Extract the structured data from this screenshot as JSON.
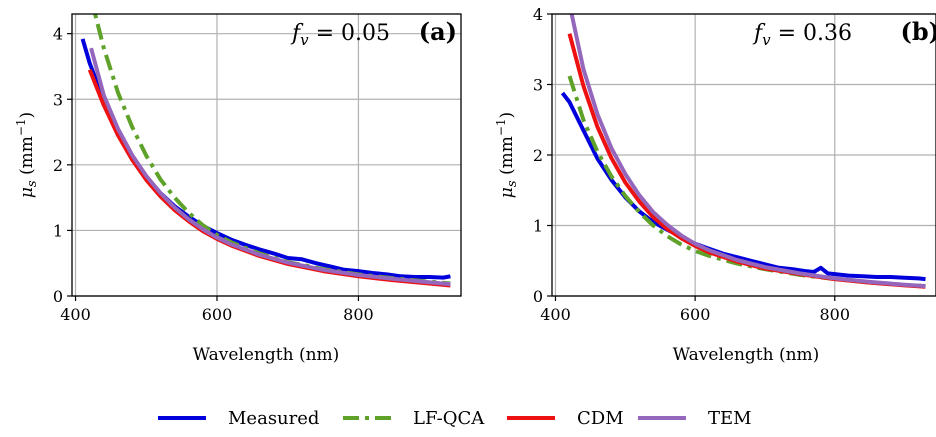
{
  "legend": {
    "entries": [
      {
        "name": "Measured",
        "color": "#0000dd",
        "dash": "solid"
      },
      {
        "name": "LF-QCA",
        "color": "#5fa22a",
        "dash": "dashdot"
      },
      {
        "name": "CDM",
        "color": "#ee1111",
        "dash": "solid"
      },
      {
        "name": "TEM",
        "color": "#9467bd",
        "dash": "solid"
      }
    ]
  },
  "chart_data": [
    {
      "type": "line",
      "panel_label": "(a)",
      "annotation": "f_v = 0.05",
      "annotation_base": "f",
      "annotation_sub": "v",
      "annotation_rest": " = 0.05",
      "xlabel": "Wavelength (nm)",
      "ylabel_base": "μ",
      "ylabel_sub": "s",
      "ylabel_rest": " (mm",
      "ylabel_sup": "−1",
      "ylabel_close": ")",
      "xlim": [
        395,
        945
      ],
      "ylim": [
        0,
        4.3
      ],
      "xticks": [
        400,
        600,
        800
      ],
      "yticks": [
        0,
        1,
        2,
        3,
        4
      ],
      "grid": true,
      "series": [
        {
          "name": "Measured",
          "x": [
            410,
            420,
            440,
            460,
            480,
            500,
            520,
            540,
            560,
            580,
            600,
            620,
            640,
            660,
            680,
            700,
            720,
            740,
            760,
            780,
            800,
            820,
            840,
            860,
            880,
            900,
            920,
            930
          ],
          "y": [
            3.92,
            3.55,
            2.98,
            2.5,
            2.12,
            1.82,
            1.57,
            1.37,
            1.21,
            1.07,
            0.96,
            0.86,
            0.78,
            0.71,
            0.65,
            0.58,
            0.56,
            0.5,
            0.45,
            0.4,
            0.38,
            0.35,
            0.33,
            0.3,
            0.29,
            0.29,
            0.28,
            0.3
          ]
        },
        {
          "name": "LF-QCA",
          "x": [
            420,
            440,
            460,
            480,
            500,
            520,
            540,
            560,
            580,
            600,
            620,
            660,
            700,
            750,
            800,
            850,
            900,
            930
          ],
          "y": [
            4.62,
            3.78,
            3.1,
            2.58,
            2.14,
            1.78,
            1.5,
            1.27,
            1.08,
            0.93,
            0.82,
            0.65,
            0.52,
            0.41,
            0.33,
            0.27,
            0.22,
            0.19
          ]
        },
        {
          "name": "CDM",
          "x": [
            420,
            440,
            460,
            480,
            500,
            520,
            540,
            560,
            580,
            600,
            620,
            660,
            700,
            750,
            800,
            850,
            900,
            930
          ],
          "y": [
            3.45,
            2.91,
            2.45,
            2.08,
            1.77,
            1.52,
            1.31,
            1.14,
            0.99,
            0.87,
            0.77,
            0.61,
            0.49,
            0.38,
            0.3,
            0.24,
            0.19,
            0.16
          ]
        },
        {
          "name": "TEM",
          "x": [
            422,
            440,
            460,
            480,
            500,
            520,
            540,
            560,
            580,
            600,
            620,
            660,
            700,
            750,
            800,
            850,
            900,
            930
          ],
          "y": [
            3.78,
            3.06,
            2.55,
            2.15,
            1.83,
            1.57,
            1.35,
            1.17,
            1.02,
            0.89,
            0.79,
            0.63,
            0.51,
            0.4,
            0.32,
            0.26,
            0.21,
            0.18
          ]
        }
      ]
    },
    {
      "type": "line",
      "panel_label": "(b)",
      "annotation": "f_v = 0.36",
      "annotation_base": "f",
      "annotation_sub": "v",
      "annotation_rest": " = 0.36",
      "xlabel": "Wavelength (nm)",
      "ylabel_base": "μ",
      "ylabel_sub": "s",
      "ylabel_rest": " (mm",
      "ylabel_sup": "−1",
      "ylabel_close": ")",
      "xlim": [
        395,
        945
      ],
      "ylim": [
        0,
        4.0
      ],
      "xticks": [
        400,
        600,
        800
      ],
      "yticks": [
        0,
        1,
        2,
        3,
        4
      ],
      "grid": true,
      "series": [
        {
          "name": "Measured",
          "x": [
            410,
            420,
            440,
            460,
            480,
            500,
            520,
            540,
            560,
            580,
            600,
            620,
            640,
            660,
            680,
            700,
            720,
            740,
            760,
            770,
            780,
            790,
            800,
            820,
            840,
            860,
            880,
            900,
            920,
            930
          ],
          "y": [
            2.88,
            2.75,
            2.35,
            1.95,
            1.65,
            1.4,
            1.2,
            1.05,
            0.94,
            0.84,
            0.74,
            0.67,
            0.6,
            0.55,
            0.5,
            0.45,
            0.4,
            0.38,
            0.35,
            0.34,
            0.4,
            0.32,
            0.31,
            0.29,
            0.28,
            0.27,
            0.27,
            0.26,
            0.25,
            0.24
          ]
        },
        {
          "name": "LF-QCA",
          "x": [
            420,
            440,
            460,
            480,
            500,
            520,
            540,
            560,
            580,
            600,
            620,
            660,
            700,
            750,
            800,
            850,
            900,
            930
          ],
          "y": [
            3.12,
            2.5,
            2.05,
            1.7,
            1.42,
            1.19,
            1.0,
            0.85,
            0.73,
            0.64,
            0.57,
            0.46,
            0.38,
            0.3,
            0.24,
            0.19,
            0.16,
            0.14
          ]
        },
        {
          "name": "CDM",
          "x": [
            420,
            440,
            460,
            480,
            500,
            520,
            540,
            560,
            580,
            600,
            620,
            660,
            700,
            750,
            800,
            850,
            900,
            930
          ],
          "y": [
            3.72,
            2.98,
            2.4,
            1.96,
            1.61,
            1.34,
            1.12,
            0.95,
            0.82,
            0.71,
            0.62,
            0.49,
            0.39,
            0.31,
            0.24,
            0.19,
            0.15,
            0.13
          ]
        },
        {
          "name": "TEM",
          "x": [
            422,
            440,
            460,
            480,
            500,
            520,
            540,
            560,
            580,
            600,
            620,
            660,
            700,
            750,
            800,
            850,
            900,
            930
          ],
          "y": [
            4.05,
            3.22,
            2.58,
            2.1,
            1.73,
            1.43,
            1.19,
            1.01,
            0.86,
            0.74,
            0.65,
            0.51,
            0.41,
            0.32,
            0.25,
            0.2,
            0.16,
            0.14
          ]
        }
      ]
    }
  ]
}
